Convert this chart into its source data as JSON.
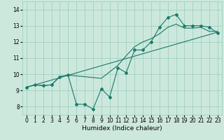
{
  "xlabel": "Humidex (Indice chaleur)",
  "ylabel": "",
  "xlim": [
    -0.5,
    23.5
  ],
  "ylim": [
    7.5,
    14.5
  ],
  "yticks": [
    8,
    9,
    10,
    11,
    12,
    13,
    14
  ],
  "xticks": [
    0,
    1,
    2,
    3,
    4,
    5,
    6,
    7,
    8,
    9,
    10,
    11,
    12,
    13,
    14,
    15,
    16,
    17,
    18,
    19,
    20,
    21,
    22,
    23
  ],
  "bg_color": "#cce8dc",
  "grid_color": "#99ccbb",
  "line_color": "#1a7a6a",
  "curve1_x": [
    0,
    1,
    2,
    3,
    4,
    5,
    6,
    7,
    8,
    9,
    10,
    11,
    12,
    13,
    14,
    15,
    16,
    17,
    18,
    19,
    20,
    21,
    22,
    23
  ],
  "curve1_y": [
    9.2,
    9.35,
    9.3,
    9.35,
    9.85,
    9.95,
    8.15,
    8.15,
    7.85,
    9.1,
    8.6,
    10.4,
    10.1,
    11.5,
    11.5,
    12.0,
    12.9,
    13.5,
    13.7,
    13.0,
    13.0,
    13.0,
    12.9,
    12.55
  ],
  "curve2_x": [
    0,
    1,
    2,
    3,
    4,
    5,
    6,
    7,
    8,
    9,
    10,
    11,
    12,
    13,
    14,
    15,
    16,
    17,
    18,
    19,
    20,
    21,
    22,
    23
  ],
  "curve2_y": [
    9.2,
    9.35,
    9.3,
    9.35,
    9.85,
    9.95,
    9.9,
    9.85,
    9.8,
    9.75,
    10.15,
    10.55,
    11.15,
    11.7,
    12.0,
    12.2,
    12.5,
    12.9,
    13.1,
    12.85,
    12.85,
    12.9,
    12.65,
    12.65
  ],
  "trend_x": [
    0,
    23
  ],
  "trend_y": [
    9.2,
    12.6
  ],
  "xlabel_fontsize": 6.5,
  "tick_fontsize": 5.5,
  "linewidth": 0.8,
  "markersize": 2.0
}
